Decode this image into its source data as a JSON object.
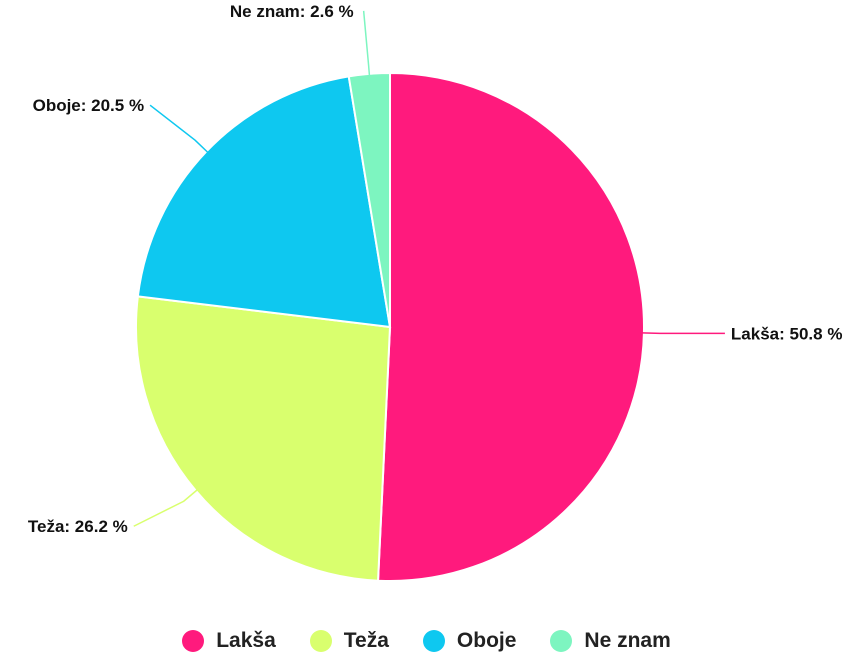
{
  "chart_data": {
    "type": "pie",
    "title": "",
    "unit": "%",
    "slices": [
      {
        "label": "Lakša",
        "value": 50.8,
        "display": "Lakša: 50.8 %",
        "color": "#ff1a7d"
      },
      {
        "label": "Teža",
        "value": 26.2,
        "display": "Teža: 26.2 %",
        "color": "#d9ff6e"
      },
      {
        "label": "Oboje",
        "value": 20.5,
        "display": "Oboje: 20.5 %",
        "color": "#0ec8f0"
      },
      {
        "label": "Ne znam",
        "value": 2.6,
        "display": "Ne znam: 2.6 %",
        "color": "#7df5c0"
      }
    ],
    "legend": {
      "position": "bottom",
      "items": [
        "Lakša",
        "Teža",
        "Oboje",
        "Ne znam"
      ]
    }
  }
}
